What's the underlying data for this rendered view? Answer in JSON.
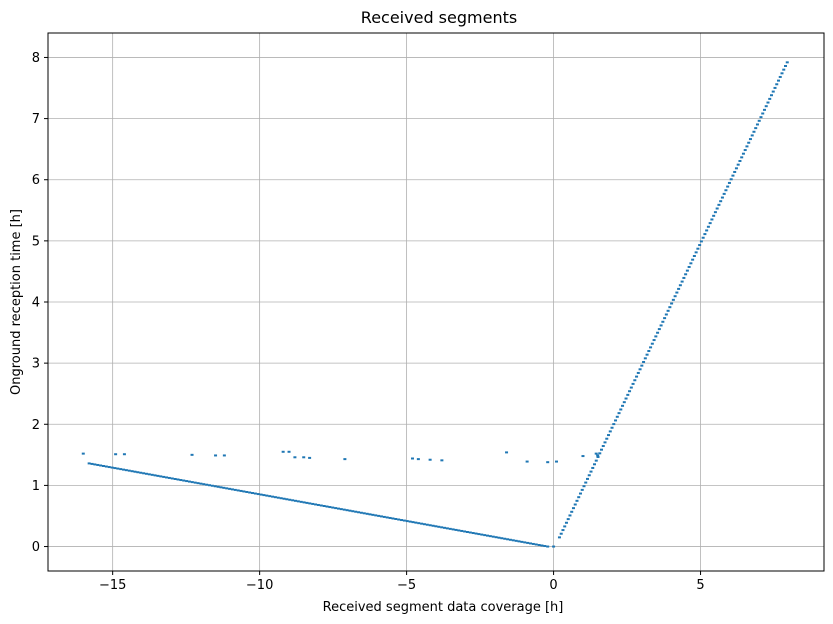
{
  "chart_data": {
    "type": "scatter",
    "title": "Received segments",
    "xlabel": "Received segment data coverage [h]",
    "ylabel": "Onground reception time [h]",
    "xlim": [
      -17.2,
      9.2
    ],
    "ylim": [
      -0.4,
      8.4
    ],
    "xticks": [
      -15,
      -10,
      -5,
      0,
      5
    ],
    "xtick_labels": [
      "−15",
      "−10",
      "−5",
      "0",
      "5"
    ],
    "yticks": [
      0,
      1,
      2,
      3,
      4,
      5,
      6,
      7,
      8
    ],
    "ytick_labels": [
      "0",
      "1",
      "2",
      "3",
      "4",
      "5",
      "6",
      "7",
      "8"
    ],
    "grid": true,
    "marker": "short horizontal dash",
    "color": "#1f77b4",
    "series": [
      {
        "description_of_trend": "descending line",
        "x_range": [
          -15.8,
          -0.2
        ],
        "y_range": [
          1.36,
          0.0
        ]
      },
      {
        "description_of_trend": "ascending line",
        "x_range": [
          0.2,
          7.95
        ],
        "y_range": [
          0.15,
          7.92
        ]
      },
      {
        "description_of_trend": "outlier segments",
        "points": [
          [
            -16.0,
            1.52
          ],
          [
            -14.9,
            1.51
          ],
          [
            -14.6,
            1.51
          ],
          [
            -12.3,
            1.5
          ],
          [
            -11.5,
            1.49
          ],
          [
            -11.2,
            1.49
          ],
          [
            -9.2,
            1.55
          ],
          [
            -9.0,
            1.55
          ],
          [
            -8.8,
            1.46
          ],
          [
            -8.5,
            1.46
          ],
          [
            -8.3,
            1.45
          ],
          [
            -7.1,
            1.43
          ],
          [
            -4.8,
            1.44
          ],
          [
            -4.6,
            1.43
          ],
          [
            -4.2,
            1.42
          ],
          [
            -3.8,
            1.41
          ],
          [
            -1.6,
            1.54
          ],
          [
            -0.9,
            1.39
          ],
          [
            -0.2,
            1.38
          ],
          [
            0.1,
            1.39
          ],
          [
            1.0,
            1.48
          ],
          [
            1.45,
            1.52
          ],
          [
            1.5,
            1.49
          ]
        ]
      }
    ]
  }
}
